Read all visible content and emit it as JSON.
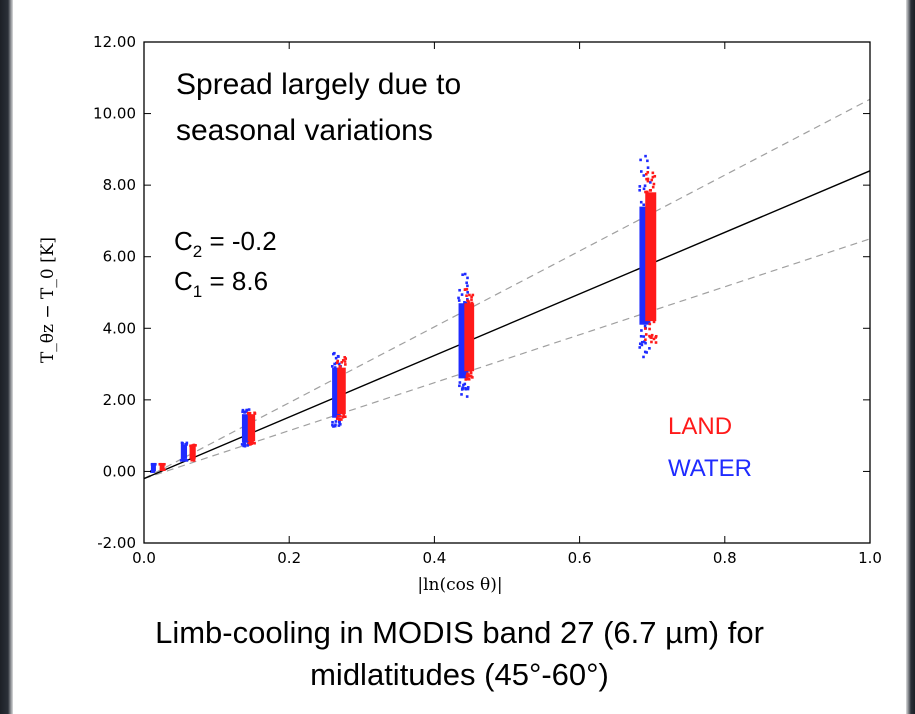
{
  "chart_data": {
    "type": "scatter",
    "title": "",
    "xlabel": "|ln(cos θ)|",
    "ylabel": "T_θz − T_0 [K]",
    "xlim": [
      0.0,
      1.0
    ],
    "ylim": [
      -2.0,
      12.0
    ],
    "x_ticks": [
      "0.0",
      "0.2",
      "0.4",
      "0.6",
      "0.8",
      "1.0"
    ],
    "y_ticks": [
      "-2.00",
      "0.00",
      "2.00",
      "4.00",
      "6.00",
      "8.00",
      "10.00",
      "12.00"
    ],
    "grid": false,
    "series": [
      {
        "name": "WATER",
        "color": "#1f2bff",
        "clusters": [
          {
            "x": 0.013,
            "y_min": 0.0,
            "y_max": 0.2,
            "y_outlier_min": 0.0,
            "y_outlier_max": 0.2
          },
          {
            "x": 0.055,
            "y_min": 0.35,
            "y_max": 0.75,
            "y_outlier_min": 0.3,
            "y_outlier_max": 0.8
          },
          {
            "x": 0.14,
            "y_min": 0.8,
            "y_max": 1.6,
            "y_outlier_min": 0.7,
            "y_outlier_max": 1.75
          },
          {
            "x": 0.265,
            "y_min": 1.5,
            "y_max": 2.9,
            "y_outlier_min": 1.25,
            "y_outlier_max": 3.35
          },
          {
            "x": 0.44,
            "y_min": 2.6,
            "y_max": 4.7,
            "y_outlier_min": 2.05,
            "y_outlier_max": 5.6
          },
          {
            "x": 0.69,
            "y_min": 4.1,
            "y_max": 7.4,
            "y_outlier_min": 3.15,
            "y_outlier_max": 8.85
          }
        ]
      },
      {
        "name": "LAND",
        "color": "#ff1a1a",
        "clusters": [
          {
            "x": 0.025,
            "y_min": 0.05,
            "y_max": 0.2,
            "y_outlier_min": 0.05,
            "y_outlier_max": 0.2
          },
          {
            "x": 0.067,
            "y_min": 0.35,
            "y_max": 0.7,
            "y_outlier_min": 0.3,
            "y_outlier_max": 0.75
          },
          {
            "x": 0.148,
            "y_min": 0.85,
            "y_max": 1.6,
            "y_outlier_min": 0.75,
            "y_outlier_max": 1.65
          },
          {
            "x": 0.272,
            "y_min": 1.6,
            "y_max": 2.9,
            "y_outlier_min": 1.45,
            "y_outlier_max": 3.2
          },
          {
            "x": 0.448,
            "y_min": 2.8,
            "y_max": 4.7,
            "y_outlier_min": 2.55,
            "y_outlier_max": 5.2
          },
          {
            "x": 0.698,
            "y_min": 4.2,
            "y_max": 7.8,
            "y_outlier_min": 3.6,
            "y_outlier_max": 8.4
          }
        ]
      }
    ],
    "fit_line": {
      "slope": 8.6,
      "intercept": -0.2,
      "x_range": [
        0.0,
        1.0
      ],
      "color": "#000000"
    },
    "bound_lines": [
      {
        "slope": 10.6,
        "intercept": -0.2,
        "style": "dashed",
        "color": "#a0a0a0"
      },
      {
        "slope": 6.7,
        "intercept": -0.2,
        "style": "dashed",
        "color": "#a0a0a0"
      }
    ],
    "annotations": {
      "spread_line1": "Spread largely due to",
      "spread_line2": "seasonal variations",
      "c2_label": "C",
      "c2_sub": "2",
      "c2_value": " = -0.2",
      "c1_label": "C",
      "c1_sub": "1",
      "c1_value": " = 8.6"
    },
    "legend": {
      "placement": "lower-right",
      "entries": [
        {
          "label": "LAND",
          "color": "#ff1a1a"
        },
        {
          "label": "WATER",
          "color": "#1f2bff"
        }
      ]
    }
  },
  "caption": {
    "line1": "Limb-cooling in MODIS band 27 (6.7 µm) for",
    "line2": "midlatitudes (45°-60°)"
  }
}
